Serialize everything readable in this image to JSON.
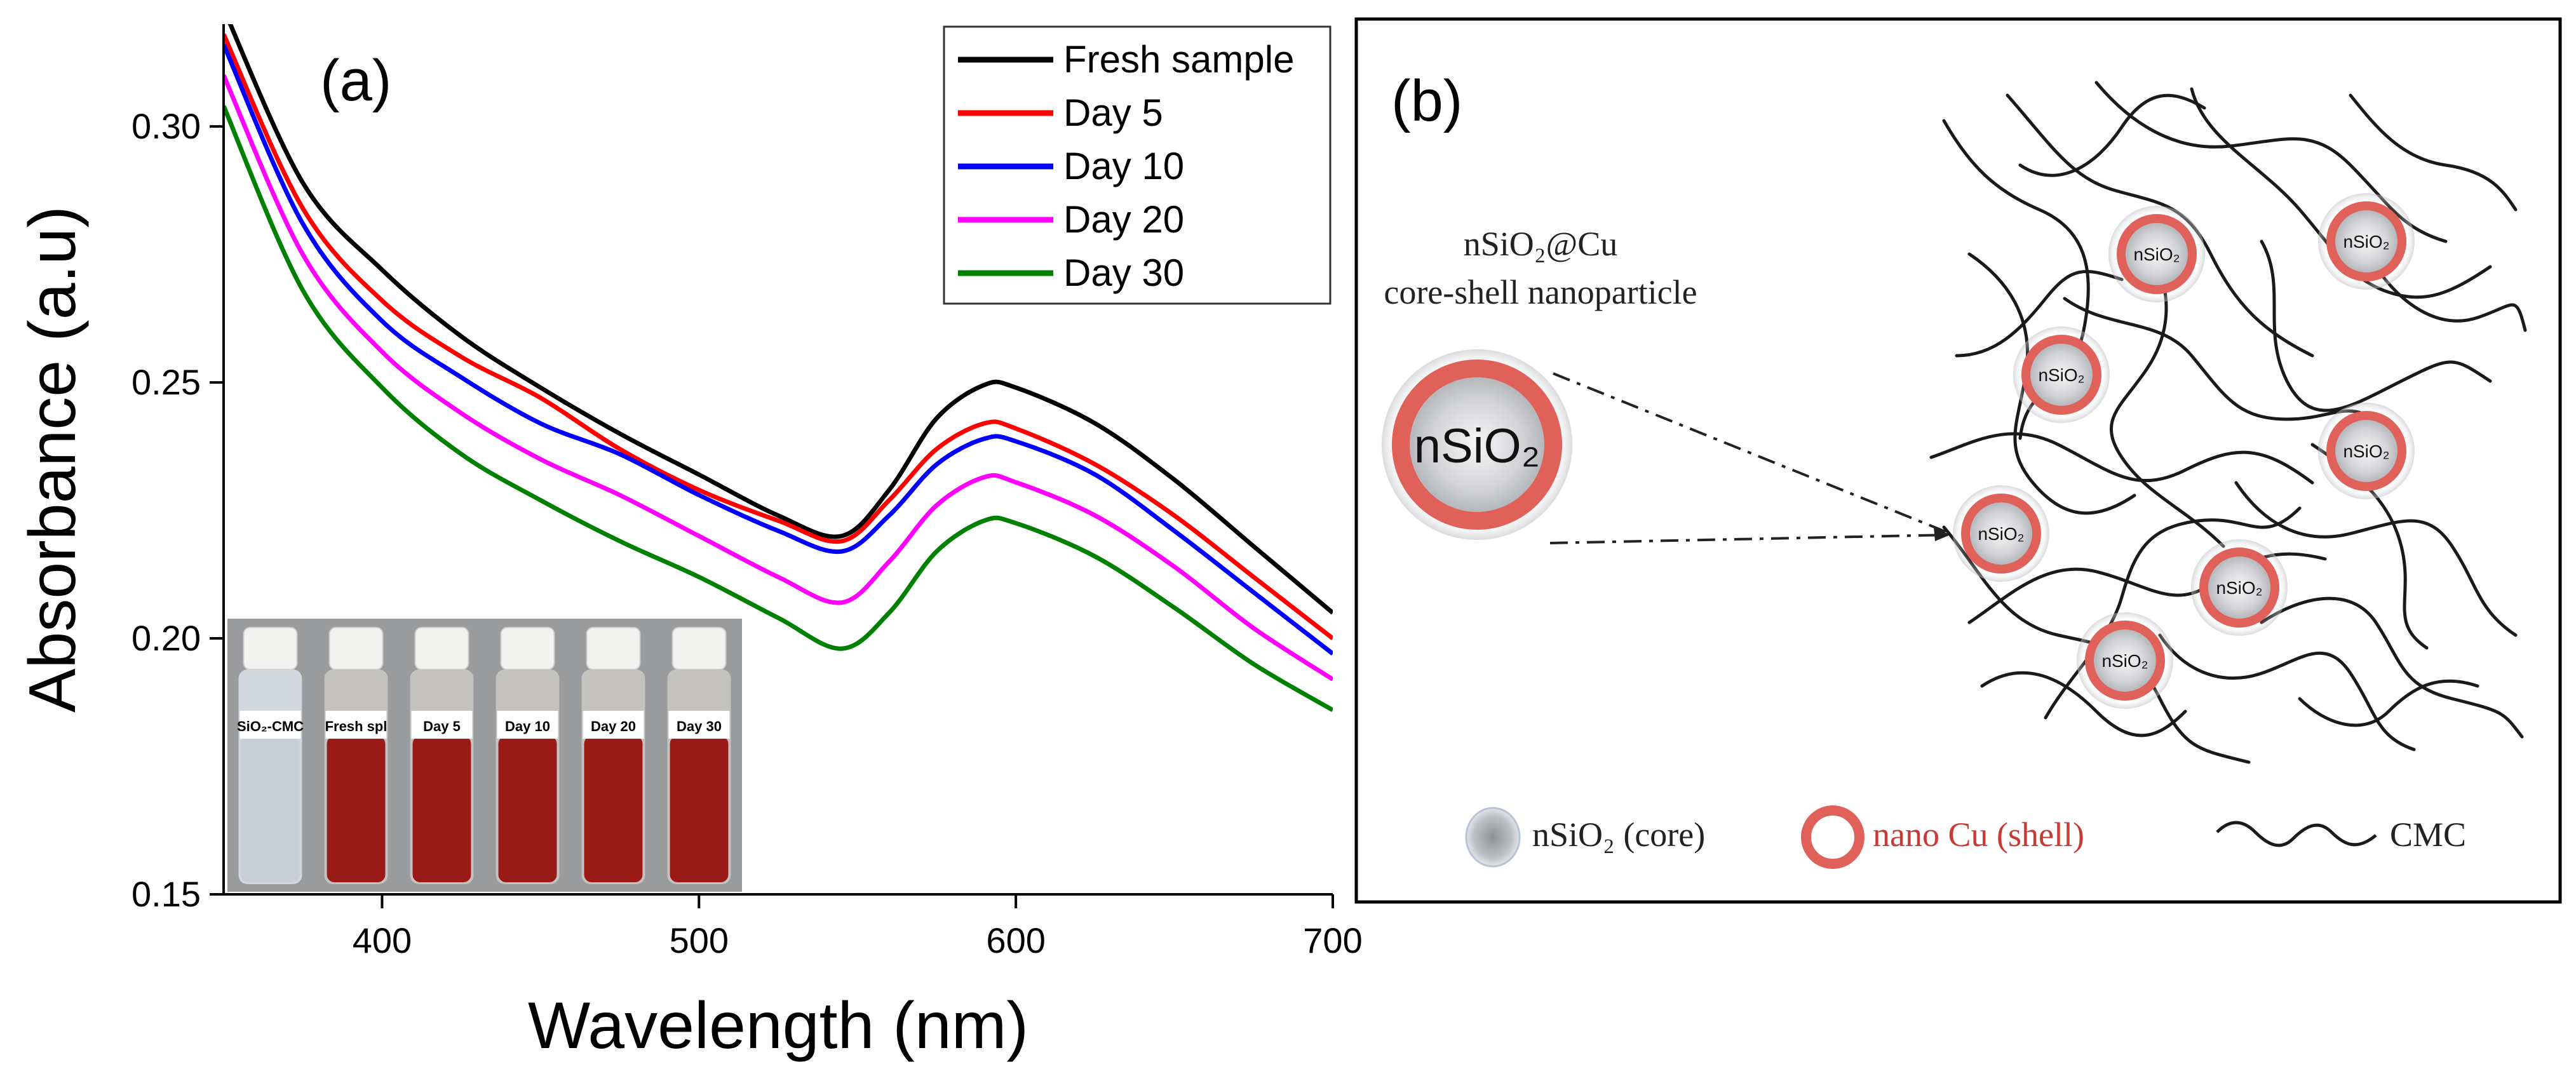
{
  "panel_a_label": "(a)",
  "panel_b_label": "(b)",
  "chart_data": {
    "type": "line",
    "title": "",
    "xlabel": "Wavelength (nm)",
    "ylabel": "Absorbance  (a.u)",
    "xlim": [
      350,
      700
    ],
    "ylim": [
      0.15,
      0.32
    ],
    "xticks": [
      400,
      500,
      600,
      700
    ],
    "yticks": [
      0.15,
      0.2,
      0.25,
      0.3
    ],
    "x": [
      350,
      375,
      400,
      425,
      450,
      475,
      500,
      525,
      545,
      560,
      575,
      590,
      600,
      625,
      650,
      675,
      700
    ],
    "series": [
      {
        "name": "Fresh sample",
        "color": "#000000",
        "values": [
          0.323,
          0.289,
          0.272,
          0.259,
          0.249,
          0.24,
          0.232,
          0.224,
          0.22,
          0.229,
          0.243,
          0.2495,
          0.249,
          0.242,
          0.231,
          0.218,
          0.205
        ]
      },
      {
        "name": "Day 5",
        "color": "#ff0000",
        "values": [
          0.318,
          0.284,
          0.266,
          0.255,
          0.247,
          0.237,
          0.229,
          0.223,
          0.219,
          0.227,
          0.237,
          0.242,
          0.241,
          0.234,
          0.224,
          0.212,
          0.2
        ]
      },
      {
        "name": "Day 10",
        "color": "#0000ff",
        "values": [
          0.316,
          0.281,
          0.262,
          0.251,
          0.242,
          0.236,
          0.228,
          0.221,
          0.217,
          0.224,
          0.234,
          0.239,
          0.2385,
          0.232,
          0.221,
          0.209,
          0.197
        ]
      },
      {
        "name": "Day 20",
        "color": "#ff00ff",
        "values": [
          0.31,
          0.275,
          0.256,
          0.244,
          0.235,
          0.228,
          0.22,
          0.212,
          0.207,
          0.215,
          0.226,
          0.2315,
          0.2305,
          0.224,
          0.214,
          0.202,
          0.192
        ]
      },
      {
        "name": "Day 30",
        "color": "#008000",
        "values": [
          0.304,
          0.268,
          0.249,
          0.236,
          0.227,
          0.219,
          0.212,
          0.204,
          0.198,
          0.205,
          0.217,
          0.223,
          0.2225,
          0.216,
          0.206,
          0.195,
          0.186
        ]
      }
    ],
    "legend_location": "top-right",
    "inset": {
      "vials": [
        "SiO₂-CMC",
        "Fresh spl",
        "Day 5",
        "Day 10",
        "Day 20",
        "Day 30"
      ],
      "colors": {
        "background": "#8a8c8e",
        "clear_liquid": "#c9cfd8",
        "red_liquid": "#9a1a18",
        "cap": "#f2f2f0"
      }
    }
  },
  "diagram": {
    "particle_caption_line1": "nSiO₂@Cu",
    "particle_caption_line2": "core-shell nanoparticle",
    "big_particle_label": "nSiO₂",
    "small_particle_label": "nSiO₂",
    "legend": {
      "core_label": "nSiO₂ (core)",
      "shell_label": "nano Cu (shell)",
      "cmc_label": "CMC"
    },
    "colors": {
      "shell": "#e0605a",
      "shell_text": "#c83a35",
      "core_dark": "#aeb0b4",
      "core_light": "#f2f2f3"
    }
  }
}
